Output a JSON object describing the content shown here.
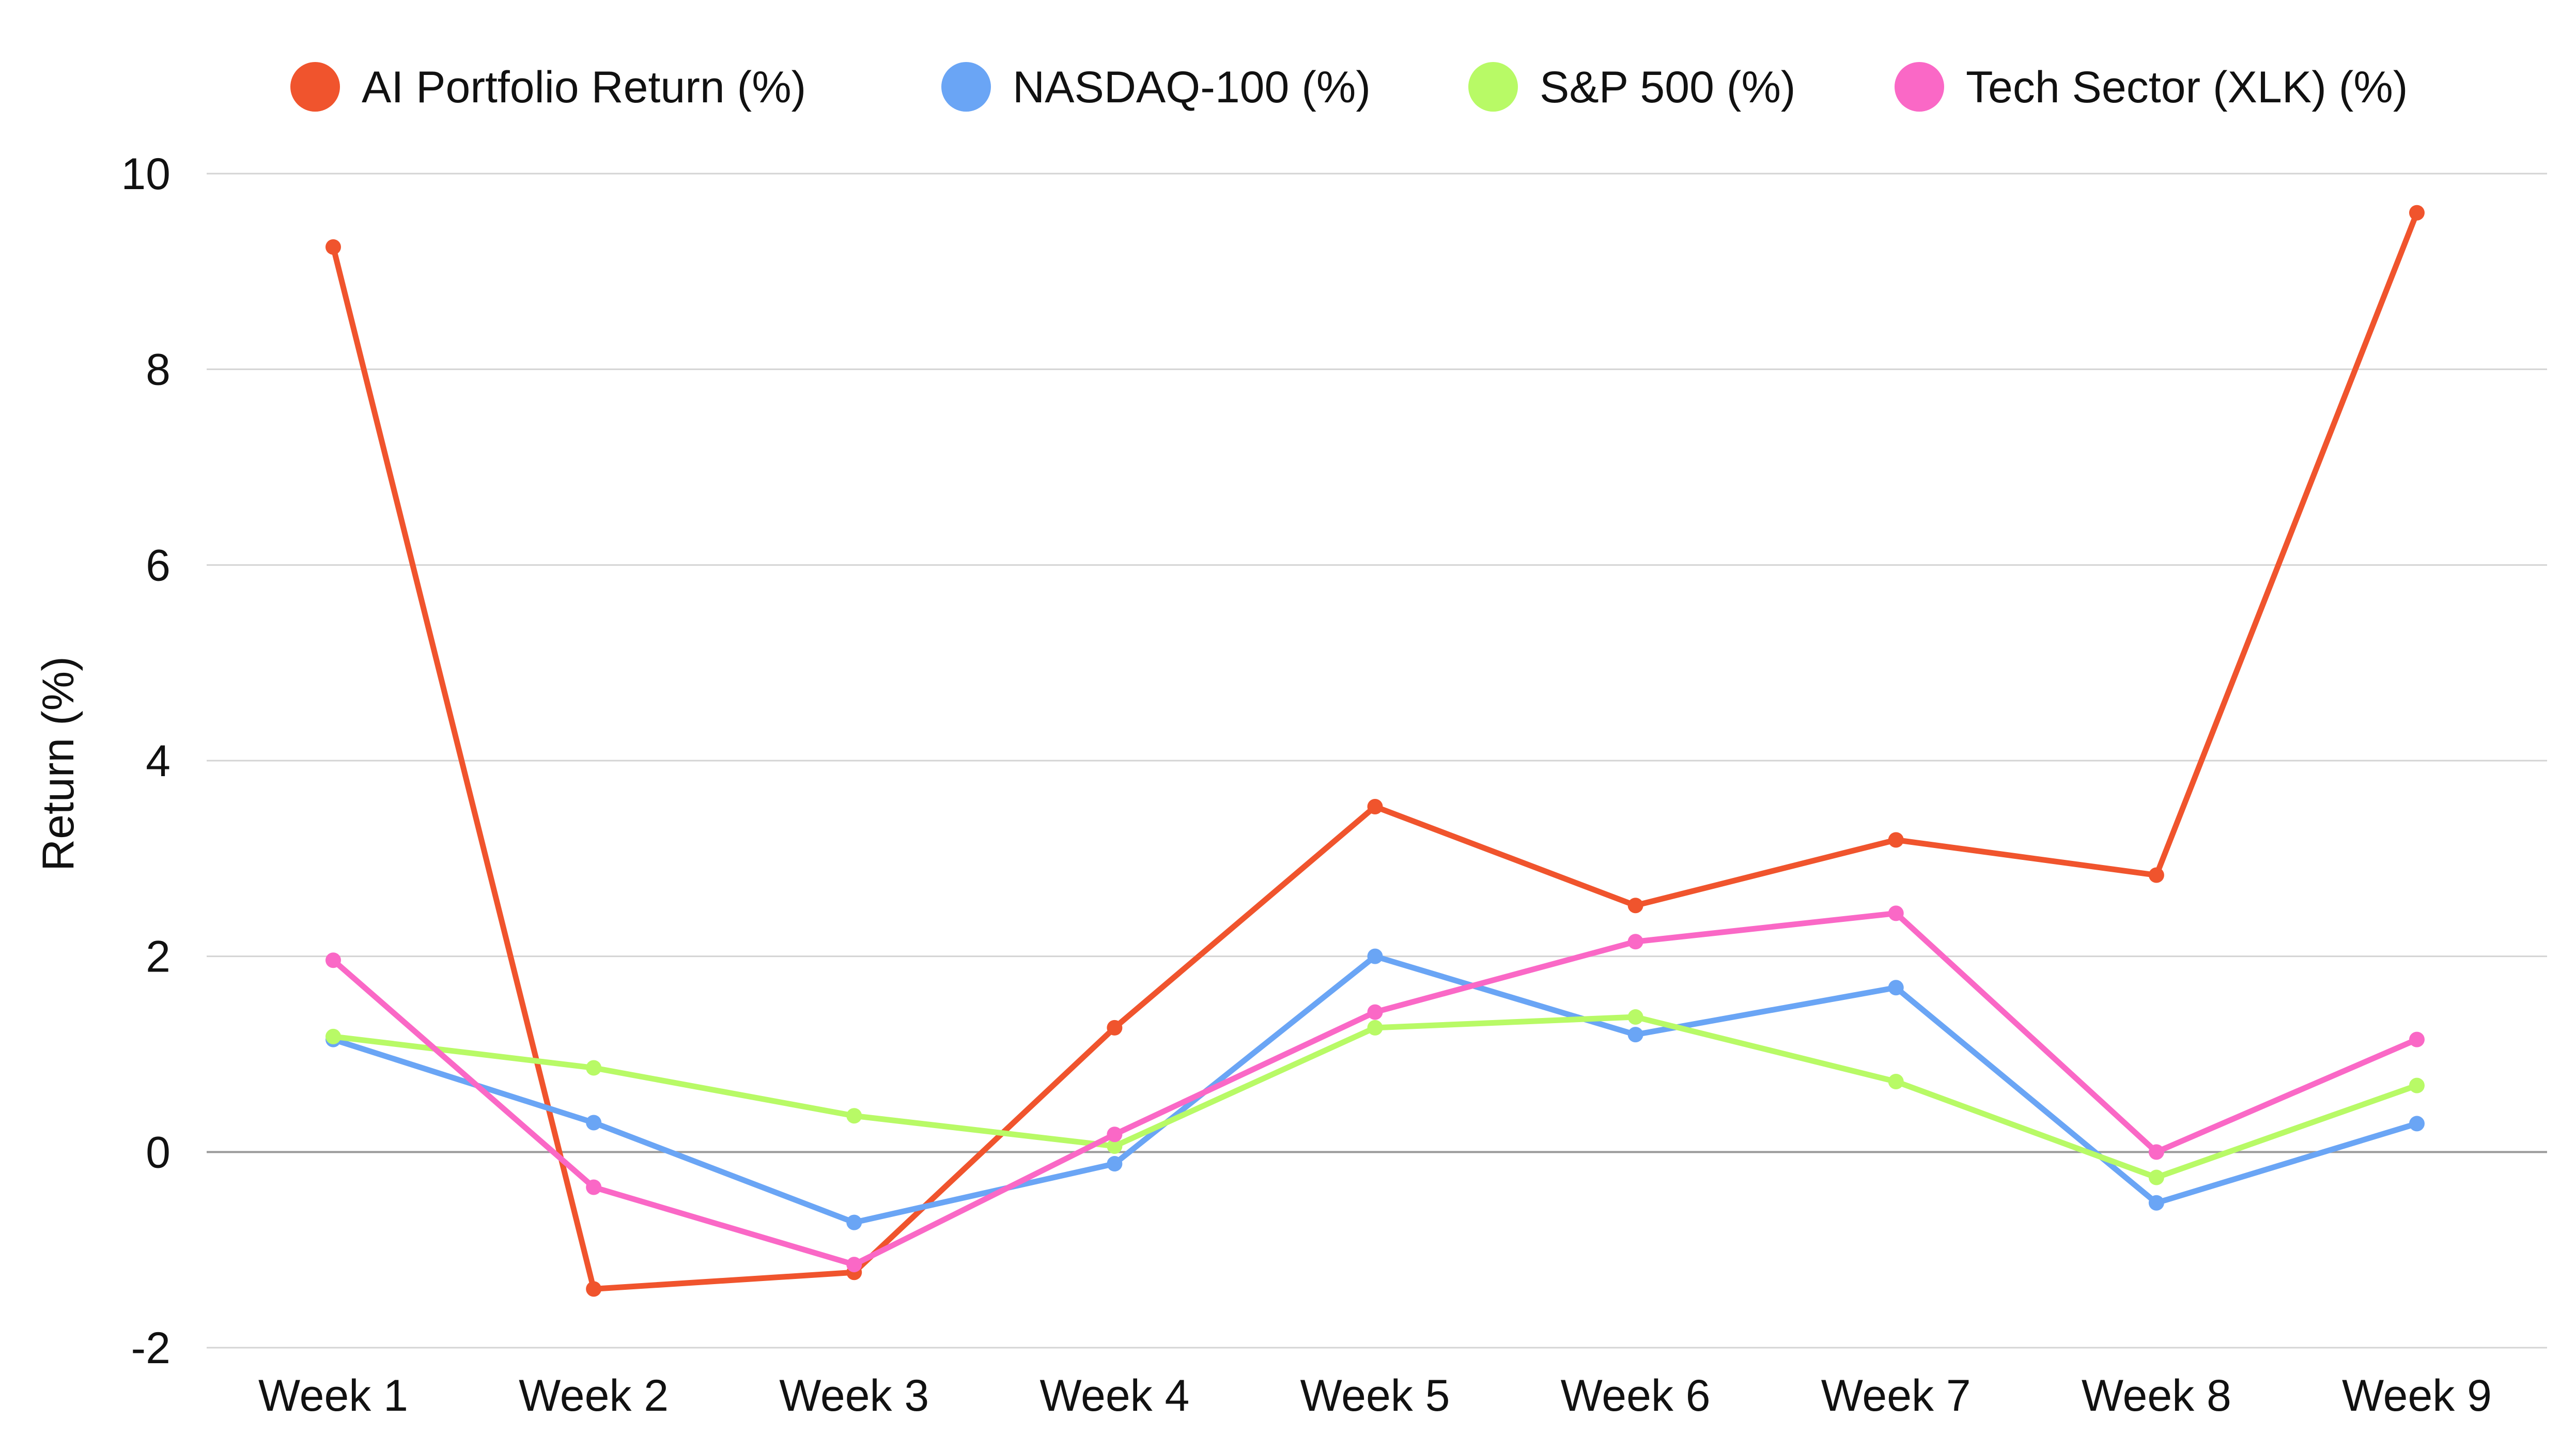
{
  "chart_data": {
    "type": "line",
    "title": "",
    "xlabel": "",
    "ylabel": "Return (%)",
    "categories": [
      "Week 1",
      "Week 2",
      "Week 3",
      "Week 4",
      "Week 5",
      "Week 6",
      "Week 7",
      "Week 8",
      "Week 9"
    ],
    "ylim": [
      -2,
      10
    ],
    "yticks": [
      "-2",
      "0",
      "2",
      "4",
      "6",
      "8",
      "10"
    ],
    "grid": "horizontal",
    "legend_position": "top",
    "series": [
      {
        "name": "AI Portfolio Return (%)",
        "color": "#F0542D",
        "values": [
          9.25,
          -1.4,
          -1.23,
          1.27,
          3.53,
          2.52,
          3.19,
          2.83,
          9.6
        ]
      },
      {
        "name": "NASDAQ-100 (%)",
        "color": "#6AA5F5",
        "values": [
          1.15,
          0.3,
          -0.72,
          -0.12,
          2.0,
          1.2,
          1.68,
          -0.52,
          0.29
        ]
      },
      {
        "name": "S&P 500 (%)",
        "color": "#B8FA66",
        "values": [
          1.18,
          0.86,
          0.37,
          0.06,
          1.27,
          1.38,
          0.72,
          -0.26,
          0.68
        ]
      },
      {
        "name": "Tech Sector (XLK) (%)",
        "color": "#FA68C6",
        "values": [
          1.96,
          -0.36,
          -1.15,
          0.18,
          1.43,
          2.15,
          2.44,
          0.0,
          1.15
        ]
      }
    ]
  }
}
